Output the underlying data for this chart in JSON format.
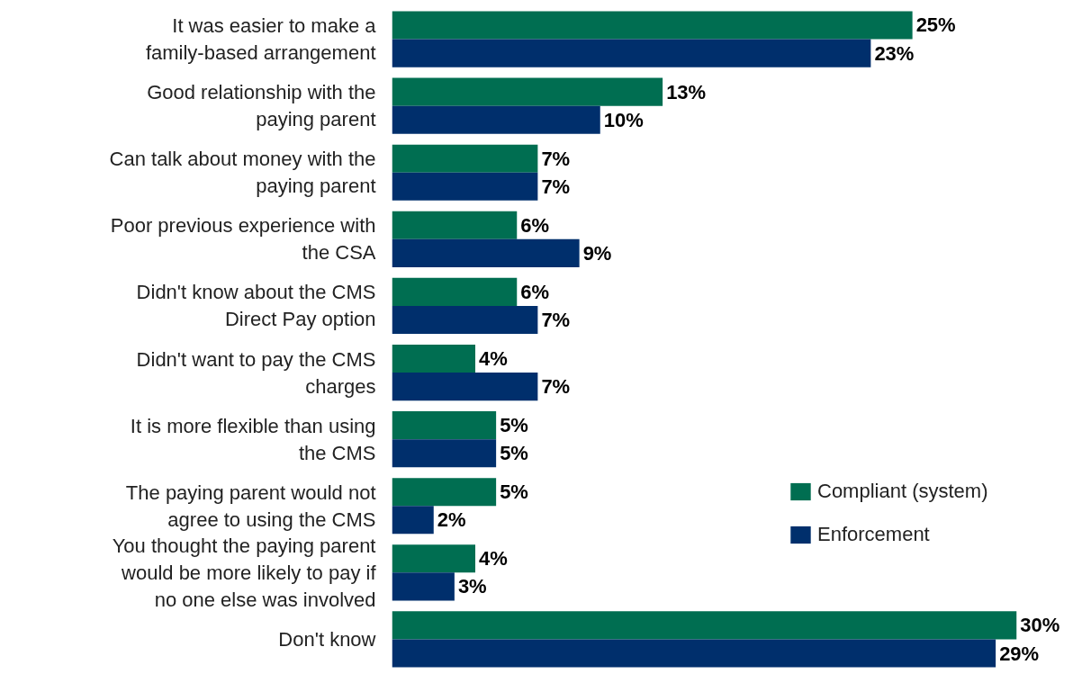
{
  "chart_data": {
    "type": "bar",
    "orientation": "horizontal",
    "legend": "bottom right",
    "grid": false,
    "categories": [
      "It was easier to make a family-based arrangement",
      "Good relationship with the paying parent",
      "Can talk about money with the paying parent",
      "Poor previous experience with the CSA",
      "Didn't know about the CMS Direct Pay option",
      "Didn't want to pay the CMS charges",
      "It is more flexible than using the CMS",
      "The paying parent would not agree to using the CMS",
      "You thought the paying parent would be more likely to pay if no one else was involved",
      "Don't know"
    ],
    "series": [
      {
        "name": "Compliant (system)",
        "color": "#006e51",
        "values": [
          25,
          13,
          7,
          6,
          6,
          4,
          5,
          5,
          4,
          30
        ],
        "value_labels": [
          "25%",
          "13%",
          "7%",
          "6%",
          "6%",
          "4%",
          "5%",
          "5%",
          "4%",
          "30%"
        ]
      },
      {
        "name": "Enforcement",
        "color": "#002f6c",
        "values": [
          23,
          10,
          7,
          9,
          7,
          7,
          5,
          2,
          3,
          29
        ],
        "value_labels": [
          "23%",
          "10%",
          "7%",
          "9%",
          "7%",
          "7%",
          "5%",
          "2%",
          "3%",
          "29%"
        ]
      }
    ]
  }
}
